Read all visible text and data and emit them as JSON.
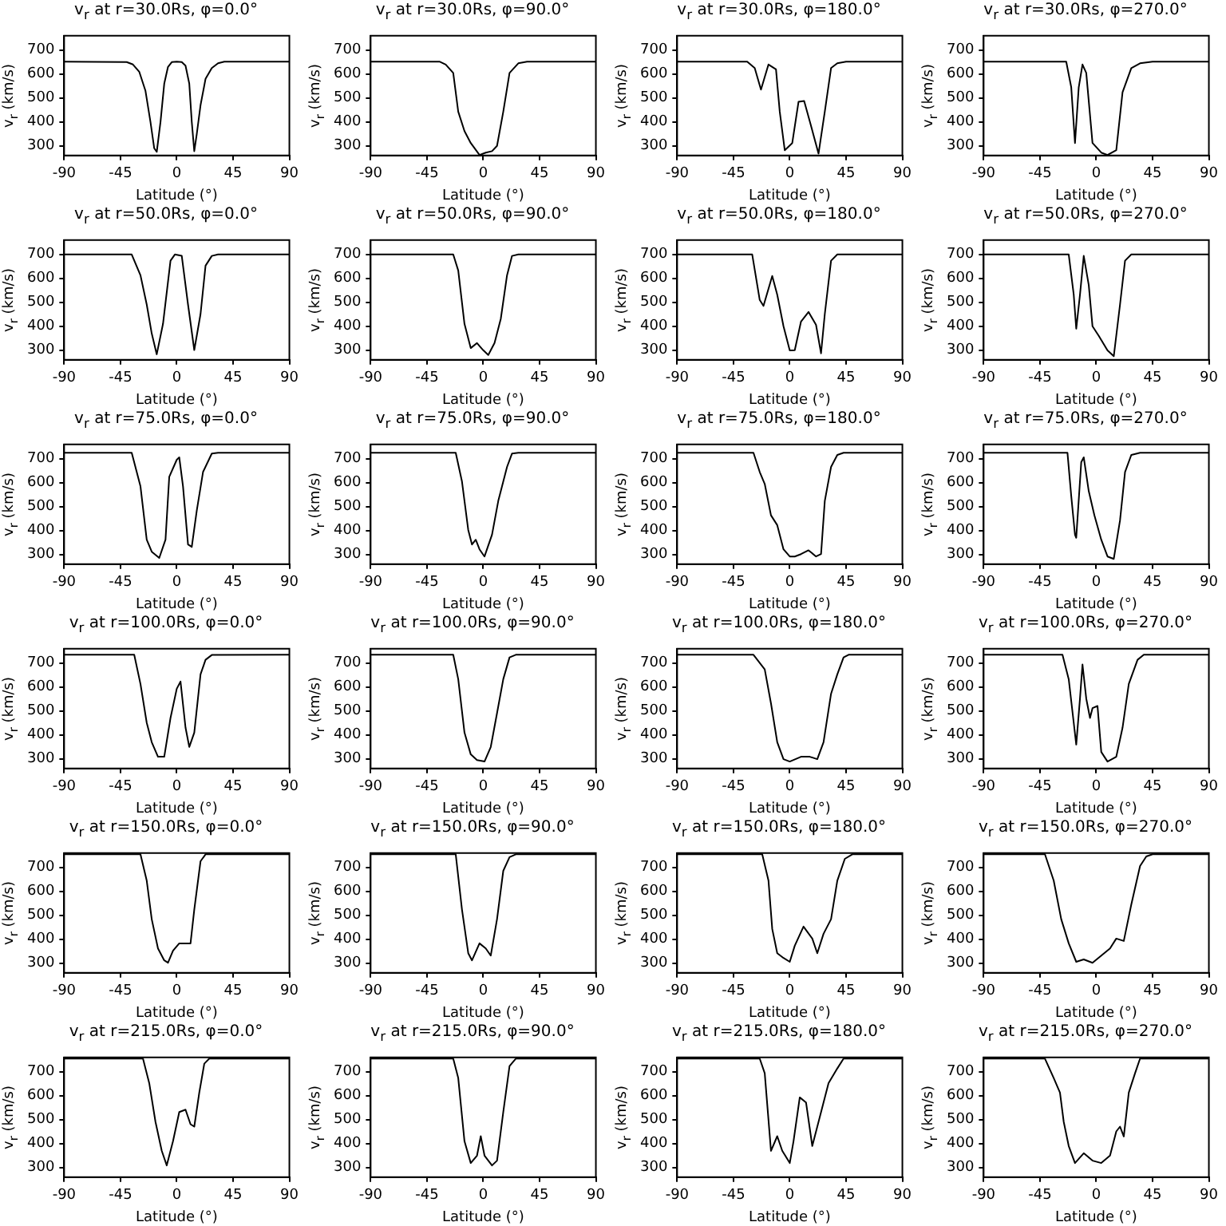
{
  "chart_data": [
    {
      "type": "line",
      "title": "v$_{r}$ at r=30.0Rs, φ=0.0°",
      "xlabel": "Latitude (°)",
      "ylabel": "v$_{r}$ (km/s)",
      "color": "#000000",
      "xlim": [
        -90,
        90
      ],
      "xticks": [
        -90,
        -45,
        0,
        45,
        90
      ],
      "ylim": [
        260,
        760
      ],
      "yticks": [
        300,
        400,
        500,
        600,
        700
      ],
      "x": [
        -90,
        -40,
        -35,
        -30,
        -25,
        -21,
        -18,
        -16,
        -13,
        -10,
        -7,
        -4,
        0,
        4,
        7,
        10,
        12,
        14,
        16,
        19,
        23,
        28,
        33,
        38,
        90
      ],
      "values": [
        652,
        650,
        640,
        610,
        530,
        400,
        290,
        275,
        400,
        560,
        630,
        650,
        652,
        650,
        635,
        560,
        400,
        278,
        350,
        470,
        580,
        625,
        645,
        652,
        652
      ]
    },
    {
      "type": "line",
      "title": "v$_{r}$ at r=30.0Rs, φ=90.0°",
      "xlabel": "Latitude (°)",
      "ylabel": "v$_{r}$ (km/s)",
      "color": "#000000",
      "xlim": [
        -90,
        90
      ],
      "xticks": [
        -90,
        -45,
        0,
        45,
        90
      ],
      "ylim": [
        260,
        760
      ],
      "yticks": [
        300,
        400,
        500,
        600,
        700
      ],
      "x": [
        -90,
        -35,
        -30,
        -24,
        -20,
        -15,
        -10,
        -3,
        2,
        7,
        11,
        16,
        21,
        28,
        35,
        90
      ],
      "values": [
        652,
        652,
        640,
        605,
        443,
        362,
        312,
        262,
        272,
        278,
        300,
        443,
        605,
        645,
        652,
        652
      ]
    },
    {
      "type": "line",
      "title": "v$_{r}$ at r=30.0Rs, φ=180.0°",
      "xlabel": "Latitude (°)",
      "ylabel": "v$_{r}$ (km/s)",
      "color": "#000000",
      "xlim": [
        -90,
        90
      ],
      "xticks": [
        -90,
        -45,
        0,
        45,
        90
      ],
      "ylim": [
        260,
        760
      ],
      "yticks": [
        300,
        400,
        500,
        600,
        700
      ],
      "x": [
        -90,
        -34,
        -28,
        -23,
        -17,
        -11,
        -8,
        -4,
        2,
        7,
        11.5,
        16,
        23,
        28,
        33,
        38,
        45,
        90
      ],
      "values": [
        652,
        652,
        625,
        535,
        640,
        620,
        443,
        282,
        312,
        484,
        488,
        403,
        268,
        443,
        625,
        645,
        652,
        652
      ]
    },
    {
      "type": "line",
      "title": "v$_{r}$ at r=30.0Rs, φ=270.0°",
      "xlabel": "Latitude (°)",
      "ylabel": "v$_{r}$ (km/s)",
      "color": "#000000",
      "xlim": [
        -90,
        90
      ],
      "xticks": [
        -90,
        -45,
        0,
        45,
        90
      ],
      "ylim": [
        260,
        760
      ],
      "yticks": [
        300,
        400,
        500,
        600,
        700
      ],
      "x": [
        -90,
        -24,
        -20,
        -17,
        -14,
        -11,
        -8,
        -3,
        4,
        9,
        16,
        21,
        28,
        35,
        45,
        90
      ],
      "values": [
        652,
        652,
        545,
        312,
        545,
        640,
        605,
        312,
        272,
        262,
        282,
        524,
        625,
        645,
        652,
        652
      ]
    },
    {
      "type": "line",
      "title": "v$_{r}$ at r=50.0Rs, φ=0.0°",
      "xlabel": "Latitude (°)",
      "ylabel": "v$_{r}$ (km/s)",
      "color": "#000000",
      "xlim": [
        -90,
        90
      ],
      "xticks": [
        -90,
        -45,
        0,
        45,
        90
      ],
      "ylim": [
        260,
        760
      ],
      "yticks": [
        300,
        400,
        500,
        600,
        700
      ],
      "x": [
        -90,
        -36,
        -29,
        -24,
        -20,
        -16,
        -11,
        -5,
        -1.5,
        4,
        9,
        14,
        19,
        23,
        28,
        33,
        90
      ],
      "values": [
        700,
        700,
        613,
        491,
        370,
        283,
        410,
        674,
        700,
        694,
        491,
        301,
        451,
        653,
        694,
        700,
        700
      ]
    },
    {
      "type": "line",
      "title": "v$_{r}$ at r=50.0Rs, φ=90.0°",
      "xlabel": "Latitude (°)",
      "ylabel": "v$_{r}$ (km/s)",
      "color": "#000000",
      "xlim": [
        -90,
        90
      ],
      "xticks": [
        -90,
        -45,
        0,
        45,
        90
      ],
      "ylim": [
        260,
        760
      ],
      "yticks": [
        300,
        400,
        500,
        600,
        700
      ],
      "x": [
        -90,
        -24,
        -20,
        -15,
        -10,
        -5,
        0,
        4,
        9,
        14,
        19,
        23,
        28,
        90
      ],
      "values": [
        700,
        700,
        633,
        410,
        309,
        330,
        300,
        280,
        330,
        431,
        613,
        694,
        700,
        700
      ]
    },
    {
      "type": "line",
      "title": "v$_{r}$ at r=50.0Rs, φ=180.0°",
      "xlabel": "Latitude (°)",
      "ylabel": "v$_{r}$ (km/s)",
      "color": "#000000",
      "xlim": [
        -90,
        90
      ],
      "xticks": [
        -90,
        -45,
        0,
        45,
        90
      ],
      "ylim": [
        260,
        760
      ],
      "yticks": [
        300,
        400,
        500,
        600,
        700
      ],
      "x": [
        -90,
        -30,
        -24,
        -21,
        -14,
        -10,
        -5,
        0,
        4,
        9,
        15,
        21,
        25,
        28,
        33,
        38,
        90
      ],
      "values": [
        700,
        700,
        510,
        485,
        610,
        532,
        400,
        299,
        300,
        420,
        460,
        406,
        287,
        451,
        674,
        700,
        700
      ]
    },
    {
      "type": "line",
      "title": "v$_{r}$ at r=50.0Rs, φ=270.0°",
      "xlabel": "Latitude (°)",
      "ylabel": "v$_{r}$ (km/s)",
      "color": "#000000",
      "xlim": [
        -90,
        90
      ],
      "xticks": [
        -90,
        -45,
        0,
        45,
        90
      ],
      "ylim": [
        260,
        760
      ],
      "yticks": [
        300,
        400,
        500,
        600,
        700
      ],
      "x": [
        -90,
        -22,
        -18,
        -16,
        -13,
        -10,
        -6,
        -3,
        2,
        9,
        14,
        19,
        23,
        28,
        90
      ],
      "values": [
        700,
        700,
        532,
        390,
        532,
        694,
        572,
        400,
        360,
        299,
        275,
        491,
        674,
        700,
        700
      ]
    },
    {
      "type": "line",
      "title": "v$_{r}$ at r=75.0Rs, φ=0.0°",
      "xlabel": "Latitude (°)",
      "ylabel": "v$_{r}$ (km/s)",
      "color": "#000000",
      "xlim": [
        -90,
        90
      ],
      "xticks": [
        -90,
        -45,
        0,
        45,
        90
      ],
      "ylim": [
        260,
        760
      ],
      "yticks": [
        300,
        400,
        500,
        600,
        700
      ],
      "x": [
        -90,
        -36,
        -29,
        -24,
        -20,
        -14,
        -9,
        -6,
        0,
        2,
        5,
        9,
        12,
        16,
        21,
        28,
        33,
        90
      ],
      "values": [
        725,
        725,
        585,
        362,
        312,
        286,
        362,
        625,
        696,
        706,
        585,
        342,
        332,
        484,
        645,
        722,
        725,
        725
      ]
    },
    {
      "type": "line",
      "title": "v$_{r}$ at r=75.0Rs, φ=90.0°",
      "xlabel": "Latitude (°)",
      "ylabel": "v$_{r}$ (km/s)",
      "color": "#000000",
      "xlim": [
        -90,
        90
      ],
      "xticks": [
        -90,
        -45,
        0,
        45,
        90
      ],
      "ylim": [
        260,
        760
      ],
      "yticks": [
        300,
        400,
        500,
        600,
        700
      ],
      "x": [
        -90,
        -22,
        -17,
        -12,
        -9,
        -6,
        -3,
        1,
        7,
        12,
        19,
        23,
        28,
        90
      ],
      "values": [
        725,
        725,
        605,
        403,
        342,
        362,
        322,
        292,
        383,
        524,
        666,
        722,
        725,
        725
      ]
    },
    {
      "type": "line",
      "title": "v$_{r}$ at r=75.0Rs, φ=180.0°",
      "xlabel": "Latitude (°)",
      "ylabel": "v$_{r}$ (km/s)",
      "color": "#000000",
      "xlim": [
        -90,
        90
      ],
      "xticks": [
        -90,
        -45,
        0,
        45,
        90
      ],
      "ylim": [
        260,
        760
      ],
      "yticks": [
        300,
        400,
        500,
        600,
        700
      ],
      "x": [
        -90,
        -29,
        -24,
        -20,
        -15,
        -10,
        -5,
        0,
        4,
        9,
        15,
        21,
        25,
        28,
        33,
        38,
        43,
        90
      ],
      "values": [
        725,
        725,
        645,
        595,
        464,
        423,
        322,
        292,
        292,
        302,
        318,
        292,
        302,
        524,
        666,
        716,
        725,
        725
      ]
    },
    {
      "type": "line",
      "title": "v$_{r}$ at r=75.0Rs, φ=270.0°",
      "xlabel": "Latitude (°)",
      "ylabel": "v$_{r}$ (km/s)",
      "color": "#000000",
      "xlim": [
        -90,
        90
      ],
      "xticks": [
        -90,
        -45,
        0,
        45,
        90
      ],
      "ylim": [
        260,
        760
      ],
      "yticks": [
        300,
        400,
        500,
        600,
        700
      ],
      "x": [
        -90,
        -23,
        -20,
        -17,
        -16,
        -12,
        -10,
        -6,
        -1.5,
        4,
        9,
        14,
        19,
        23,
        28,
        35,
        90
      ],
      "values": [
        725,
        725,
        545,
        383,
        370,
        686,
        706,
        565,
        464,
        362,
        292,
        282,
        443,
        645,
        716,
        725,
        725
      ]
    },
    {
      "type": "line",
      "title": "v$_{r}$ at r=100.0Rs, φ=0.0°",
      "xlabel": "Latitude (°)",
      "ylabel": "v$_{r}$ (km/s)",
      "color": "#000000",
      "xlim": [
        -90,
        90
      ],
      "xticks": [
        -90,
        -45,
        0,
        45,
        90
      ],
      "ylim": [
        260,
        760
      ],
      "yticks": [
        300,
        400,
        500,
        600,
        700
      ],
      "x": [
        -90,
        -34,
        -29,
        -24,
        -20,
        -15,
        -10,
        -5,
        0,
        3,
        7,
        10,
        14,
        19,
        23,
        28,
        90
      ],
      "values": [
        735,
        735,
        613,
        451,
        370,
        309,
        309,
        471,
        593,
        623,
        431,
        350,
        410,
        653,
        714,
        734,
        735
      ]
    },
    {
      "type": "line",
      "title": "v$_{r}$ at r=100.0Rs, φ=90.0°",
      "xlabel": "Latitude (°)",
      "ylabel": "v$_{r}$ (km/s)",
      "color": "#000000",
      "xlim": [
        -90,
        90
      ],
      "xticks": [
        -90,
        -45,
        0,
        45,
        90
      ],
      "ylim": [
        260,
        760
      ],
      "yticks": [
        300,
        400,
        500,
        600,
        700
      ],
      "x": [
        -90,
        -24,
        -20,
        -15,
        -10,
        -5,
        1,
        6,
        11,
        16,
        21,
        26,
        90
      ],
      "values": [
        735,
        735,
        633,
        410,
        319,
        295,
        289,
        350,
        491,
        633,
        724,
        735,
        735
      ]
    },
    {
      "type": "line",
      "title": "v$_{r}$ at r=100.0Rs, φ=180.0°",
      "xlabel": "Latitude (°)",
      "ylabel": "v$_{r}$ (km/s)",
      "color": "#000000",
      "xlim": [
        -90,
        90
      ],
      "xticks": [
        -90,
        -45,
        0,
        45,
        90
      ],
      "ylim": [
        260,
        760
      ],
      "yticks": [
        300,
        400,
        500,
        600,
        700
      ],
      "x": [
        -90,
        -29,
        -20,
        -15,
        -10,
        -5,
        0,
        9,
        16,
        22,
        27,
        33,
        38,
        43,
        47,
        90
      ],
      "values": [
        735,
        735,
        674,
        532,
        370,
        299,
        289,
        309,
        309,
        299,
        370,
        572,
        653,
        724,
        735,
        735
      ]
    },
    {
      "type": "line",
      "title": "v$_{r}$ at r=100.0Rs, φ=270.0°",
      "xlabel": "Latitude (°)",
      "ylabel": "v$_{r}$ (km/s)",
      "color": "#000000",
      "xlim": [
        -90,
        90
      ],
      "xticks": [
        -90,
        -45,
        0,
        45,
        90
      ],
      "ylim": [
        260,
        760
      ],
      "yticks": [
        300,
        400,
        500,
        600,
        700
      ],
      "x": [
        -90,
        -27,
        -22,
        -18,
        -16,
        -13,
        -11,
        -8,
        -5,
        -3,
        1,
        4,
        9,
        16,
        21,
        26,
        33,
        38,
        90
      ],
      "values": [
        735,
        735,
        633,
        451,
        360,
        552,
        694,
        552,
        471,
        512,
        521,
        329,
        289,
        309,
        430,
        613,
        714,
        735,
        735
      ]
    },
    {
      "type": "line",
      "title": "v$_{r}$ at r=150.0Rs, φ=0.0°",
      "xlabel": "Latitude (°)",
      "ylabel": "v$_{r}$ (km/s)",
      "color": "#000000",
      "xlim": [
        -90,
        90
      ],
      "xticks": [
        -90,
        -45,
        0,
        45,
        90
      ],
      "ylim": [
        260,
        760
      ],
      "yticks": [
        300,
        400,
        500,
        600,
        700
      ],
      "x": [
        -90,
        -29,
        -24,
        -20,
        -15,
        -10,
        -7,
        -3,
        2,
        7,
        11,
        14,
        19,
        23,
        90
      ],
      "values": [
        755,
        755,
        645,
        484,
        362,
        312,
        302,
        352,
        383,
        383,
        383,
        524,
        726,
        755,
        755
      ]
    },
    {
      "type": "line",
      "title": "v$_{r}$ at r=150.0Rs, φ=90.0°",
      "xlabel": "Latitude (°)",
      "ylabel": "v$_{r}$ (km/s)",
      "color": "#000000",
      "xlim": [
        -90,
        90
      ],
      "xticks": [
        -90,
        -45,
        0,
        45,
        90
      ],
      "ylim": [
        260,
        760
      ],
      "yticks": [
        300,
        400,
        500,
        600,
        700
      ],
      "x": [
        -90,
        -22,
        -17,
        -12,
        -9,
        -3,
        2,
        6,
        11,
        16,
        21,
        26,
        90
      ],
      "values": [
        755,
        755,
        524,
        342,
        312,
        383,
        362,
        332,
        484,
        686,
        743,
        755,
        755
      ]
    },
    {
      "type": "line",
      "title": "v$_{r}$ at r=150.0Rs, φ=180.0°",
      "xlabel": "Latitude (°)",
      "ylabel": "v$_{r}$ (km/s)",
      "color": "#000000",
      "xlim": [
        -90,
        90
      ],
      "xticks": [
        -90,
        -45,
        0,
        45,
        90
      ],
      "ylim": [
        260,
        760
      ],
      "yticks": [
        300,
        400,
        500,
        600,
        700
      ],
      "x": [
        -90,
        -22,
        -17,
        -14,
        -10,
        -5,
        0,
        4,
        11,
        18,
        22,
        27,
        33,
        38,
        44,
        50,
        90
      ],
      "values": [
        755,
        755,
        645,
        443,
        342,
        322,
        306,
        373,
        453,
        403,
        342,
        423,
        484,
        645,
        736,
        755,
        755
      ]
    },
    {
      "type": "line",
      "title": "v$_{r}$ at r=150.0Rs, φ=270.0°",
      "xlabel": "Latitude (°)",
      "ylabel": "v$_{r}$ (km/s)",
      "color": "#000000",
      "xlim": [
        -90,
        90
      ],
      "xticks": [
        -90,
        -45,
        0,
        45,
        90
      ],
      "ylim": [
        260,
        760
      ],
      "yticks": [
        300,
        400,
        500,
        600,
        700
      ],
      "x": [
        -90,
        -41,
        -34,
        -28,
        -22,
        -16,
        -10,
        -3,
        4,
        11,
        16,
        22,
        28,
        35,
        40,
        45,
        90
      ],
      "values": [
        755,
        755,
        645,
        484,
        383,
        306,
        316,
        302,
        332,
        362,
        403,
        393,
        545,
        706,
        746,
        755,
        755
      ]
    },
    {
      "type": "line",
      "title": "v$_{r}$ at r=215.0Rs, φ=0.0°",
      "xlabel": "Latitude (°)",
      "ylabel": "v$_{r}$ (km/s)",
      "color": "#000000",
      "xlim": [
        -90,
        90
      ],
      "xticks": [
        -90,
        -45,
        0,
        45,
        90
      ],
      "ylim": [
        260,
        760
      ],
      "yticks": [
        300,
        400,
        500,
        600,
        700
      ],
      "x": [
        -90,
        -27,
        -22,
        -17,
        -12,
        -8,
        -3,
        2,
        7,
        11,
        14,
        18,
        22,
        26,
        90
      ],
      "values": [
        755,
        755,
        653,
        491,
        370,
        309,
        410,
        532,
        542,
        481,
        471,
        613,
        734,
        755,
        755
      ]
    },
    {
      "type": "line",
      "title": "v$_{r}$ at r=215.0Rs, φ=90.0°",
      "xlabel": "Latitude (°)",
      "ylabel": "v$_{r}$ (km/s)",
      "color": "#000000",
      "xlim": [
        -90,
        90
      ],
      "xticks": [
        -90,
        -45,
        0,
        45,
        90
      ],
      "ylim": [
        260,
        760
      ],
      "yticks": [
        300,
        400,
        500,
        600,
        700
      ],
      "x": [
        -90,
        -24,
        -20,
        -15,
        -10,
        -5,
        -2,
        1,
        7,
        11,
        16,
        21,
        26,
        90
      ],
      "values": [
        755,
        755,
        674,
        410,
        319,
        350,
        431,
        350,
        309,
        329,
        532,
        724,
        755,
        755
      ]
    },
    {
      "type": "line",
      "title": "v$_{r}$ at r=215.0Rs, φ=180.0°",
      "xlabel": "Latitude (°)",
      "ylabel": "v$_{r}$ (km/s)",
      "color": "#000000",
      "xlim": [
        -90,
        90
      ],
      "xticks": [
        -90,
        -45,
        0,
        45,
        90
      ],
      "ylim": [
        260,
        760
      ],
      "yticks": [
        300,
        400,
        500,
        600,
        700
      ],
      "x": [
        -90,
        -24,
        -20,
        -15,
        -10,
        -6,
        0,
        3,
        8,
        13,
        18,
        23,
        31,
        38,
        43,
        90
      ],
      "values": [
        755,
        755,
        694,
        370,
        431,
        370,
        319,
        410,
        593,
        572,
        390,
        491,
        653,
        714,
        755,
        755
      ]
    },
    {
      "type": "line",
      "title": "v$_{r}$ at r=215.0Rs, φ=270.0°",
      "xlabel": "Latitude (°)",
      "ylabel": "v$_{r}$ (km/s)",
      "color": "#000000",
      "xlim": [
        -90,
        90
      ],
      "xticks": [
        -90,
        -45,
        0,
        45,
        90
      ],
      "ylim": [
        260,
        760
      ],
      "yticks": [
        300,
        400,
        500,
        600,
        700
      ],
      "x": [
        -90,
        -41,
        -34,
        -29,
        -26,
        -22,
        -17,
        -10,
        -3,
        4,
        11,
        16,
        19,
        22,
        26,
        31,
        35,
        90
      ],
      "values": [
        755,
        755,
        674,
        613,
        491,
        390,
        319,
        360,
        329,
        319,
        350,
        451,
        471,
        430,
        613,
        694,
        755,
        755
      ]
    }
  ]
}
